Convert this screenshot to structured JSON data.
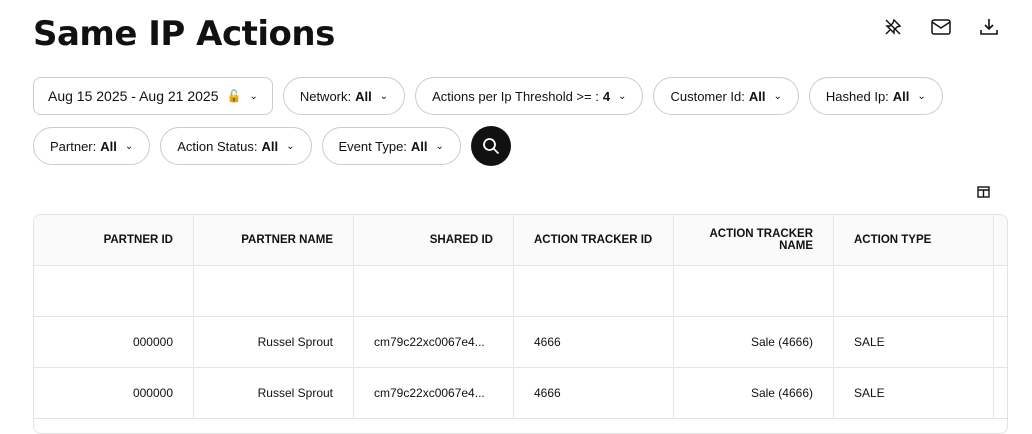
{
  "title": "Same IP Actions",
  "toolbar": {
    "icons": [
      "pin-off-icon",
      "mail-icon",
      "download-icon"
    ]
  },
  "filters": {
    "date": "Aug 15 2025 - Aug 21 2025",
    "network": {
      "label": "Network:",
      "value": "All"
    },
    "threshold": {
      "label": "Actions per Ip Threshold >= :",
      "value": "4"
    },
    "customer": {
      "label": "Customer Id:",
      "value": "All"
    },
    "hashed_ip": {
      "label": "Hashed Ip:",
      "value": "All"
    },
    "partner": {
      "label": "Partner:",
      "value": "All"
    },
    "action_status": {
      "label": "Action Status:",
      "value": "All"
    },
    "event_type": {
      "label": "Event Type:",
      "value": "All"
    }
  },
  "table": {
    "columns": [
      "Partner ID",
      "Partner Name",
      "Shared ID",
      "Action Tracker ID",
      "Action Tracker Name",
      "Action Type"
    ],
    "rows": [
      [
        "000000",
        "Russel Sprout",
        "cm79c22xc0067e4...",
        "4666",
        "Sale (4666)",
        "SALE"
      ],
      [
        "000000",
        "Russel Sprout",
        "cm79c22xc0067e4...",
        "4666",
        "Sale (4666)",
        "SALE"
      ]
    ]
  }
}
